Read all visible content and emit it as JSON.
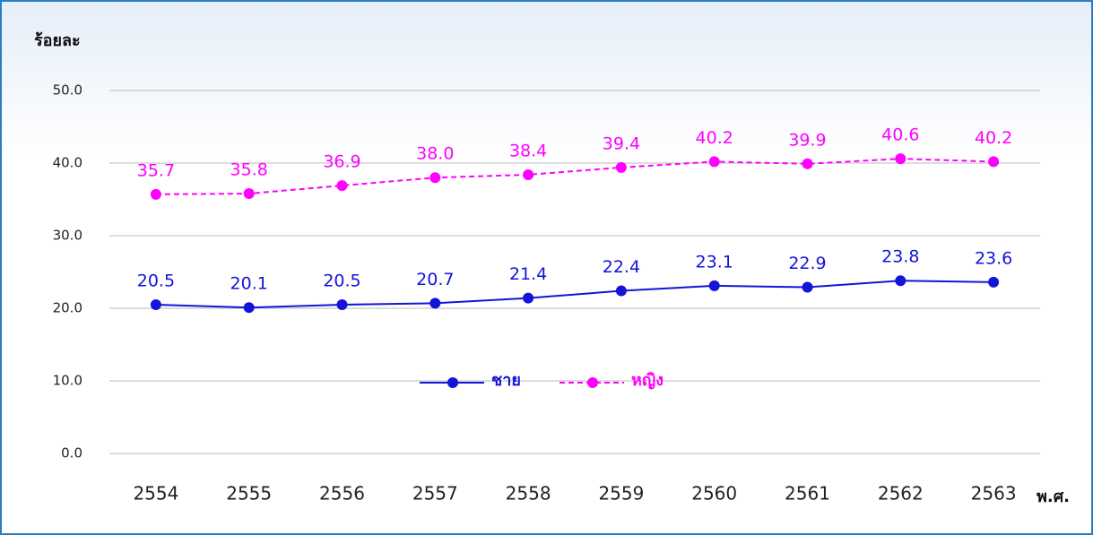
{
  "chart_data": {
    "type": "line",
    "ylabel": "ร้อยละ",
    "xlabel": "พ.ศ.",
    "categories": [
      "2554",
      "2555",
      "2556",
      "2557",
      "2558",
      "2559",
      "2560",
      "2561",
      "2562",
      "2563"
    ],
    "series": [
      {
        "name": "ชาย",
        "color": "#1414d8",
        "values": [
          20.5,
          20.1,
          20.5,
          20.7,
          21.4,
          22.4,
          23.1,
          22.9,
          23.8,
          23.6
        ],
        "value_labels": [
          "20.5",
          "20.1",
          "20.5",
          "20.7",
          "21.4",
          "22.4",
          "23.1",
          "22.9",
          "23.8",
          "23.6"
        ]
      },
      {
        "name": "หญิง",
        "color": "#ff00ff",
        "dashed": true,
        "values": [
          35.7,
          35.8,
          36.9,
          38.0,
          38.4,
          39.4,
          40.2,
          39.9,
          40.6,
          40.2
        ],
        "value_labels": [
          "35.7",
          "35.8",
          "36.9",
          "38.0",
          "38.4",
          "39.4",
          "40.2",
          "39.9",
          "40.6",
          "40.2"
        ]
      }
    ],
    "ylim": [
      0,
      50
    ],
    "yticks": [
      {
        "value": 0,
        "label": "0.0"
      },
      {
        "value": 10,
        "label": "10.0"
      },
      {
        "value": 20,
        "label": "20.0"
      },
      {
        "value": 30,
        "label": "30.0"
      },
      {
        "value": 40,
        "label": "40.0"
      },
      {
        "value": 50,
        "label": "50.0"
      }
    ],
    "grid": true
  }
}
